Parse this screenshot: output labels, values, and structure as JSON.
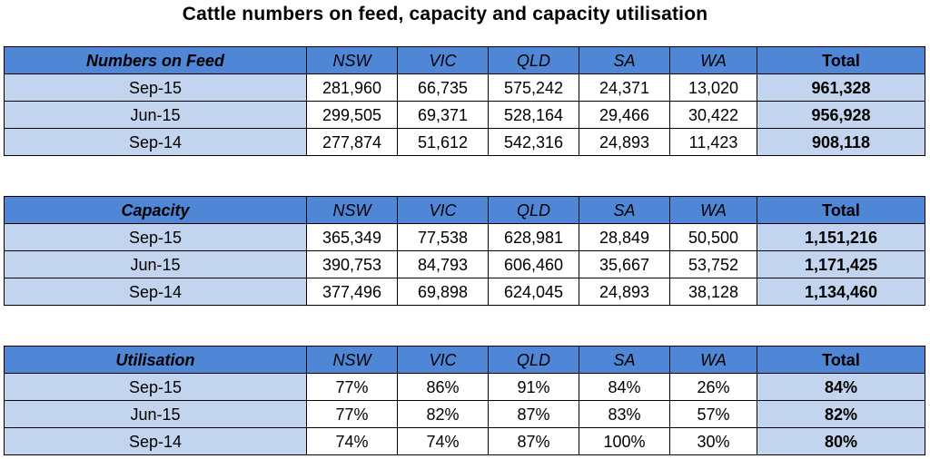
{
  "title": "Cattle numbers on feed, capacity and capacity utilisation",
  "tables": [
    {
      "label": "Numbers on Feed",
      "columns": [
        "NSW",
        "VIC",
        "QLD",
        "SA",
        "WA",
        "Total"
      ],
      "rows": [
        {
          "period": "Sep-15",
          "values": [
            "281,960",
            "66,735",
            "575,242",
            "24,371",
            "13,020"
          ],
          "total": "961,328"
        },
        {
          "period": "Jun-15",
          "values": [
            "299,505",
            "69,371",
            "528,164",
            "29,466",
            "30,422"
          ],
          "total": "956,928"
        },
        {
          "period": "Sep-14",
          "values": [
            "277,874",
            "51,612",
            "542,316",
            "24,893",
            "11,423"
          ],
          "total": "908,118"
        }
      ]
    },
    {
      "label": "Capacity",
      "columns": [
        "NSW",
        "VIC",
        "QLD",
        "SA",
        "WA",
        "Total"
      ],
      "rows": [
        {
          "period": "Sep-15",
          "values": [
            "365,349",
            "77,538",
            "628,981",
            "28,849",
            "50,500"
          ],
          "total": "1,151,216"
        },
        {
          "period": "Jun-15",
          "values": [
            "390,753",
            "84,793",
            "606,460",
            "35,667",
            "53,752"
          ],
          "total": "1,171,425"
        },
        {
          "period": "Sep-14",
          "values": [
            "377,496",
            "69,898",
            "624,045",
            "24,893",
            "38,128"
          ],
          "total": "1,134,460"
        }
      ]
    },
    {
      "label": "Utilisation",
      "columns": [
        "NSW",
        "VIC",
        "QLD",
        "SA",
        "WA",
        "Total"
      ],
      "rows": [
        {
          "period": "Sep-15",
          "values": [
            "77%",
            "86%",
            "91%",
            "84%",
            "26%"
          ],
          "total": "84%"
        },
        {
          "period": "Jun-15",
          "values": [
            "77%",
            "82%",
            "87%",
            "83%",
            "57%"
          ],
          "total": "82%"
        },
        {
          "period": "Sep-14",
          "values": [
            "74%",
            "74%",
            "87%",
            "100%",
            "30%"
          ],
          "total": "80%"
        }
      ]
    }
  ],
  "colors": {
    "header_fill": "#4f86d6",
    "label_fill": "#c3d5ee",
    "value_fill": "#ffffff",
    "border": "#000000"
  }
}
